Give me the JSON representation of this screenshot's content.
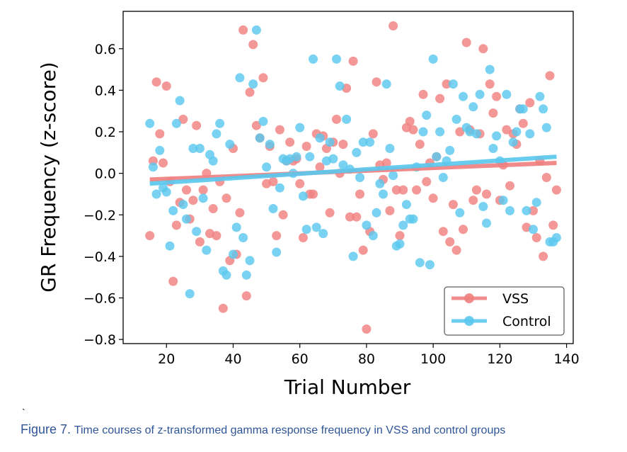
{
  "caption": {
    "figure_label": "Figure 7.",
    "text": "Time courses of z-transformed gamma response frequency in VSS and control groups",
    "color": "#2f5597"
  },
  "stray_mark": "`",
  "chart_data": {
    "type": "scatter",
    "title": "",
    "xlabel": "Trial Number",
    "ylabel": "GR Frequency (z-score)",
    "xlim": [
      7,
      142
    ],
    "ylim": [
      -0.82,
      0.78
    ],
    "xticks": [
      20,
      40,
      60,
      80,
      100,
      120,
      140
    ],
    "yticks": [
      -0.8,
      -0.6,
      -0.4,
      -0.2,
      0.0,
      0.2,
      0.4,
      0.6
    ],
    "ytick_labels": [
      "−0.8",
      "−0.6",
      "−0.4",
      "−0.2",
      "0.0",
      "0.2",
      "0.4",
      "0.6"
    ],
    "grid": false,
    "legend_position": "bottom-right",
    "series": [
      {
        "name": "VSS",
        "color": "#f08080",
        "regression": {
          "x": [
            15,
            137
          ],
          "y": [
            -0.03,
            0.05
          ]
        },
        "points": [
          [
            15,
            -0.3
          ],
          [
            16,
            0.06
          ],
          [
            17,
            0.44
          ],
          [
            18,
            0.19
          ],
          [
            19,
            0.05
          ],
          [
            20,
            0.42
          ],
          [
            21,
            -0.04
          ],
          [
            22,
            -0.52
          ],
          [
            23,
            -0.25
          ],
          [
            24,
            -0.14
          ],
          [
            25,
            0.26
          ],
          [
            26,
            -0.08
          ],
          [
            27,
            -0.22
          ],
          [
            28,
            -0.13
          ],
          [
            29,
            0.23
          ],
          [
            30,
            -0.33
          ],
          [
            31,
            -0.08
          ],
          [
            32,
            0.0
          ],
          [
            33,
            -0.29
          ],
          [
            34,
            -0.17
          ],
          [
            35,
            -0.3
          ],
          [
            36,
            -0.04
          ],
          [
            37,
            -0.65
          ],
          [
            38,
            -0.12
          ],
          [
            39,
            -0.42
          ],
          [
            40,
            0.12
          ],
          [
            41,
            -0.39
          ],
          [
            42,
            -0.19
          ],
          [
            43,
            0.69
          ],
          [
            44,
            -0.59
          ],
          [
            45,
            0.39
          ],
          [
            46,
            0.62
          ],
          [
            47,
            0.23
          ],
          [
            48,
            0.17
          ],
          [
            49,
            0.46
          ],
          [
            50,
            -0.05
          ],
          [
            51,
            0.13
          ],
          [
            52,
            -0.04
          ],
          [
            53,
            -0.3
          ],
          [
            54,
            0.21
          ],
          [
            55,
            -0.2
          ],
          [
            56,
            0.06
          ],
          [
            57,
            0.15
          ],
          [
            58,
            0.06
          ],
          [
            59,
            0.07
          ],
          [
            60,
            -0.05
          ],
          [
            61,
            -0.31
          ],
          [
            62,
            0.13
          ],
          [
            63,
            -0.1
          ],
          [
            64,
            -0.1
          ],
          [
            65,
            0.19
          ],
          [
            66,
            0.03
          ],
          [
            67,
            0.18
          ],
          [
            68,
            0.12
          ],
          [
            69,
            -0.19
          ],
          [
            70,
            0.15
          ],
          [
            71,
            0.26
          ],
          [
            72,
            0.0
          ],
          [
            73,
            0.14
          ],
          [
            74,
            0.41
          ],
          [
            75,
            -0.21
          ],
          [
            76,
            0.54
          ],
          [
            77,
            -0.21
          ],
          [
            78,
            -0.1
          ],
          [
            79,
            -0.37
          ],
          [
            80,
            -0.75
          ],
          [
            81,
            -0.28
          ],
          [
            82,
            0.19
          ],
          [
            83,
            0.44
          ],
          [
            84,
            0.04
          ],
          [
            85,
            -0.03
          ],
          [
            86,
            0.05
          ],
          [
            87,
            -0.18
          ],
          [
            88,
            0.71
          ],
          [
            89,
            -0.08
          ],
          [
            90,
            -0.3
          ],
          [
            91,
            -0.08
          ],
          [
            92,
            0.22
          ],
          [
            93,
            0.25
          ],
          [
            94,
            0.21
          ],
          [
            95,
            -0.08
          ],
          [
            96,
            0.14
          ],
          [
            97,
            0.38
          ],
          [
            98,
            -0.04
          ],
          [
            99,
            0.05
          ],
          [
            100,
            -0.12
          ],
          [
            101,
            0.08
          ],
          [
            102,
            0.36
          ],
          [
            103,
            -0.28
          ],
          [
            104,
            0.43
          ],
          [
            105,
            -0.33
          ],
          [
            106,
            -0.15
          ],
          [
            107,
            -0.37
          ],
          [
            108,
            0.2
          ],
          [
            109,
            -0.27
          ],
          [
            110,
            0.63
          ],
          [
            111,
            0.21
          ],
          [
            112,
            -0.13
          ],
          [
            113,
            -0.08
          ],
          [
            114,
            0.19
          ],
          [
            115,
            0.6
          ],
          [
            116,
            -0.1
          ],
          [
            117,
            0.43
          ],
          [
            118,
            0.29
          ],
          [
            119,
            0.37
          ],
          [
            120,
            -0.13
          ],
          [
            121,
            0.04
          ],
          [
            122,
            0.21
          ],
          [
            123,
            -0.06
          ],
          [
            124,
            0.19
          ],
          [
            125,
            0.14
          ],
          [
            126,
            0.31
          ],
          [
            127,
            0.24
          ],
          [
            128,
            -0.26
          ],
          [
            129,
            0.34
          ],
          [
            130,
            -0.18
          ],
          [
            131,
            -0.31
          ],
          [
            132,
            0.06
          ],
          [
            133,
            -0.4
          ],
          [
            134,
            -0.02
          ],
          [
            135,
            0.47
          ],
          [
            136,
            -0.25
          ],
          [
            137,
            -0.08
          ]
        ]
      },
      {
        "name": "Control",
        "color": "#5bc8ee",
        "regression": {
          "x": [
            15,
            137
          ],
          "y": [
            -0.05,
            0.08
          ]
        },
        "points": [
          [
            15,
            0.24
          ],
          [
            16,
            0.03
          ],
          [
            17,
            -0.1
          ],
          [
            18,
            0.11
          ],
          [
            19,
            -0.07
          ],
          [
            20,
            -0.09
          ],
          [
            21,
            -0.35
          ],
          [
            22,
            -0.18
          ],
          [
            23,
            0.24
          ],
          [
            24,
            0.35
          ],
          [
            25,
            -0.15
          ],
          [
            26,
            -0.22
          ],
          [
            27,
            -0.58
          ],
          [
            28,
            0.12
          ],
          [
            29,
            -0.28
          ],
          [
            30,
            0.12
          ],
          [
            31,
            -0.12
          ],
          [
            32,
            -0.37
          ],
          [
            33,
            0.09
          ],
          [
            34,
            0.06
          ],
          [
            35,
            0.19
          ],
          [
            36,
            0.24
          ],
          [
            37,
            -0.47
          ],
          [
            38,
            -0.49
          ],
          [
            39,
            0.14
          ],
          [
            40,
            -0.39
          ],
          [
            41,
            -0.26
          ],
          [
            42,
            0.46
          ],
          [
            43,
            -0.31
          ],
          [
            44,
            -0.49
          ],
          [
            45,
            -0.42
          ],
          [
            46,
            0.43
          ],
          [
            47,
            0.69
          ],
          [
            48,
            0.17
          ],
          [
            49,
            0.25
          ],
          [
            50,
            0.03
          ],
          [
            51,
            0.14
          ],
          [
            52,
            -0.17
          ],
          [
            53,
            -0.38
          ],
          [
            54,
            -0.07
          ],
          [
            55,
            0.07
          ],
          [
            56,
            0.06
          ],
          [
            57,
            0.07
          ],
          [
            58,
            0.0
          ],
          [
            59,
            0.08
          ],
          [
            60,
            0.22
          ],
          [
            61,
            -0.11
          ],
          [
            62,
            -0.27
          ],
          [
            63,
            0.08
          ],
          [
            64,
            0.55
          ],
          [
            65,
            -0.26
          ],
          [
            66,
            0.17
          ],
          [
            67,
            -0.29
          ],
          [
            68,
            0.06
          ],
          [
            69,
            0.15
          ],
          [
            70,
            0.07
          ],
          [
            71,
            0.55
          ],
          [
            72,
            0.42
          ],
          [
            73,
            0.04
          ],
          [
            74,
            0.26
          ],
          [
            75,
            0.02
          ],
          [
            76,
            -0.4
          ],
          [
            77,
            0.1
          ],
          [
            78,
            -0.02
          ],
          [
            79,
            0.15
          ],
          [
            80,
            -0.25
          ],
          [
            81,
            0.15
          ],
          [
            82,
            -0.3
          ],
          [
            83,
            -0.19
          ],
          [
            84,
            -0.05
          ],
          [
            85,
            -0.1
          ],
          [
            86,
            0.43
          ],
          [
            87,
            0.12
          ],
          [
            88,
            -0.01
          ],
          [
            89,
            -0.35
          ],
          [
            90,
            -0.34
          ],
          [
            91,
            -0.25
          ],
          [
            92,
            -0.15
          ],
          [
            93,
            -0.22
          ],
          [
            94,
            -0.22
          ],
          [
            95,
            0.03
          ],
          [
            96,
            -0.43
          ],
          [
            97,
            0.2
          ],
          [
            98,
            0.28
          ],
          [
            99,
            -0.44
          ],
          [
            100,
            0.55
          ],
          [
            101,
            0.08
          ],
          [
            102,
            0.2
          ],
          [
            103,
            -0.02
          ],
          [
            104,
            0.06
          ],
          [
            105,
            0.11
          ],
          [
            106,
            0.43
          ],
          [
            107,
            0.26
          ],
          [
            108,
            -0.19
          ],
          [
            109,
            0.37
          ],
          [
            110,
            0.22
          ],
          [
            111,
            0.2
          ],
          [
            112,
            0.32
          ],
          [
            113,
            0.19
          ],
          [
            114,
            0.38
          ],
          [
            115,
            -0.16
          ],
          [
            116,
            -0.24
          ],
          [
            117,
            0.5
          ],
          [
            118,
            0.12
          ],
          [
            119,
            0.18
          ],
          [
            120,
            0.06
          ],
          [
            121,
            -0.13
          ],
          [
            122,
            0.38
          ],
          [
            123,
            -0.18
          ],
          [
            124,
            0.15
          ],
          [
            125,
            0.2
          ],
          [
            126,
            0.31
          ],
          [
            127,
            0.31
          ],
          [
            128,
            -0.18
          ],
          [
            129,
            0.19
          ],
          [
            130,
            -0.27
          ],
          [
            131,
            -0.14
          ],
          [
            132,
            0.37
          ],
          [
            133,
            0.31
          ],
          [
            134,
            0.22
          ],
          [
            135,
            -0.33
          ],
          [
            136,
            -0.33
          ],
          [
            137,
            -0.31
          ]
        ]
      }
    ]
  }
}
